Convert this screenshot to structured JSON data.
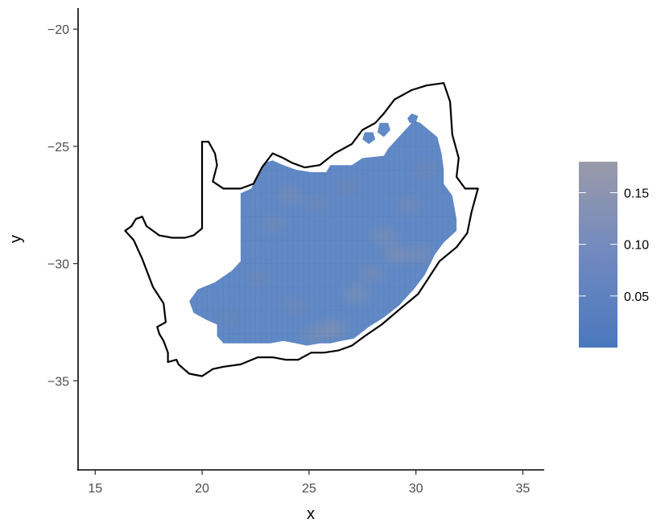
{
  "chart_data": {
    "type": "heatmap",
    "title": "",
    "xlabel": "x",
    "ylabel": "y",
    "xlim": [
      14.2,
      36.0
    ],
    "ylim": [
      -38.8,
      -19.1
    ],
    "x_ticks": [
      15,
      20,
      25,
      30,
      35
    ],
    "x_tick_labels": [
      "15",
      "20",
      "25",
      "30",
      "35"
    ],
    "y_ticks": [
      -20,
      -25,
      -30,
      -35
    ],
    "y_tick_labels": [
      "−20",
      "−25",
      "−30",
      "−35"
    ],
    "grid": false,
    "legend": {
      "placement": "right",
      "min": 0.0,
      "max": 0.18,
      "breaks": [
        0.05,
        0.1,
        0.15
      ],
      "labels": [
        "0.05",
        "0.10",
        "0.15"
      ],
      "color_low": "#4a78bd",
      "color_high": "#9a9aa8"
    },
    "fill_color": "#6089c6",
    "outline_color": "#000000",
    "outline": [
      [
        16.4,
        -28.6
      ],
      [
        16.7,
        -28.4
      ],
      [
        16.9,
        -28.1
      ],
      [
        17.2,
        -28.0
      ],
      [
        17.4,
        -28.4
      ],
      [
        18.0,
        -28.8
      ],
      [
        18.6,
        -28.9
      ],
      [
        19.2,
        -28.9
      ],
      [
        19.6,
        -28.8
      ],
      [
        20.0,
        -28.5
      ],
      [
        20.0,
        -24.8
      ],
      [
        20.3,
        -24.8
      ],
      [
        20.6,
        -25.3
      ],
      [
        20.7,
        -25.8
      ],
      [
        20.5,
        -26.5
      ],
      [
        21.0,
        -26.8
      ],
      [
        21.8,
        -26.8
      ],
      [
        22.4,
        -26.6
      ],
      [
        22.8,
        -25.9
      ],
      [
        23.3,
        -25.3
      ],
      [
        23.8,
        -25.5
      ],
      [
        24.2,
        -25.7
      ],
      [
        24.8,
        -25.9
      ],
      [
        25.5,
        -25.8
      ],
      [
        26.2,
        -25.3
      ],
      [
        27.0,
        -24.9
      ],
      [
        27.5,
        -24.3
      ],
      [
        28.1,
        -24.0
      ],
      [
        28.5,
        -23.6
      ],
      [
        29.0,
        -23.0
      ],
      [
        29.8,
        -22.6
      ],
      [
        30.5,
        -22.4
      ],
      [
        31.3,
        -22.3
      ],
      [
        31.6,
        -23.1
      ],
      [
        31.7,
        -24.5
      ],
      [
        32.0,
        -25.5
      ],
      [
        31.9,
        -26.3
      ],
      [
        32.3,
        -26.8
      ],
      [
        32.9,
        -26.8
      ],
      [
        32.6,
        -27.8
      ],
      [
        32.4,
        -28.7
      ],
      [
        31.9,
        -29.3
      ],
      [
        31.1,
        -29.9
      ],
      [
        30.6,
        -30.6
      ],
      [
        30.1,
        -31.3
      ],
      [
        29.3,
        -31.9
      ],
      [
        28.4,
        -32.6
      ],
      [
        27.6,
        -33.1
      ],
      [
        27.0,
        -33.5
      ],
      [
        26.4,
        -33.7
      ],
      [
        25.7,
        -33.8
      ],
      [
        25.1,
        -33.8
      ],
      [
        24.5,
        -34.1
      ],
      [
        23.9,
        -34.1
      ],
      [
        23.3,
        -34.0
      ],
      [
        22.6,
        -34.0
      ],
      [
        21.8,
        -34.3
      ],
      [
        21.0,
        -34.4
      ],
      [
        20.5,
        -34.5
      ],
      [
        20.0,
        -34.8
      ],
      [
        19.4,
        -34.7
      ],
      [
        18.9,
        -34.3
      ],
      [
        18.8,
        -34.1
      ],
      [
        18.4,
        -34.2
      ],
      [
        18.4,
        -33.8
      ],
      [
        18.2,
        -33.3
      ],
      [
        18.0,
        -33.0
      ],
      [
        17.9,
        -32.7
      ],
      [
        18.3,
        -32.5
      ],
      [
        18.2,
        -31.7
      ],
      [
        17.7,
        -31.0
      ],
      [
        17.2,
        -29.8
      ],
      [
        16.8,
        -29.0
      ],
      [
        16.4,
        -28.6
      ]
    ],
    "data_region": [
      [
        21.8,
        -27.0
      ],
      [
        22.3,
        -26.8
      ],
      [
        22.6,
        -26.2
      ],
      [
        22.9,
        -25.7
      ],
      [
        23.3,
        -25.6
      ],
      [
        23.8,
        -25.8
      ],
      [
        24.4,
        -26.0
      ],
      [
        25.1,
        -26.1
      ],
      [
        25.8,
        -26.1
      ],
      [
        26.0,
        -25.8
      ],
      [
        27.0,
        -25.8
      ],
      [
        27.5,
        -25.5
      ],
      [
        28.5,
        -25.4
      ],
      [
        28.7,
        -25.1
      ],
      [
        29.3,
        -24.5
      ],
      [
        29.6,
        -24.2
      ],
      [
        29.9,
        -23.9
      ],
      [
        30.2,
        -24.0
      ],
      [
        30.6,
        -24.3
      ],
      [
        31.0,
        -24.6
      ],
      [
        31.2,
        -25.3
      ],
      [
        31.3,
        -26.0
      ],
      [
        31.3,
        -26.6
      ],
      [
        31.7,
        -27.1
      ],
      [
        31.9,
        -28.1
      ],
      [
        31.9,
        -28.6
      ],
      [
        31.3,
        -29.1
      ],
      [
        30.9,
        -29.6
      ],
      [
        30.4,
        -30.5
      ],
      [
        29.9,
        -31.1
      ],
      [
        29.2,
        -31.8
      ],
      [
        28.5,
        -32.3
      ],
      [
        27.8,
        -32.7
      ],
      [
        27.1,
        -33.2
      ],
      [
        26.5,
        -33.3
      ],
      [
        26.0,
        -33.4
      ],
      [
        25.5,
        -33.4
      ],
      [
        24.9,
        -33.5
      ],
      [
        24.4,
        -33.4
      ],
      [
        23.8,
        -33.3
      ],
      [
        23.2,
        -33.4
      ],
      [
        22.3,
        -33.4
      ],
      [
        21.6,
        -33.4
      ],
      [
        21.0,
        -33.4
      ],
      [
        20.7,
        -33.1
      ],
      [
        20.7,
        -32.6
      ],
      [
        20.2,
        -32.4
      ],
      [
        19.6,
        -32.1
      ],
      [
        19.4,
        -31.6
      ],
      [
        19.8,
        -31.1
      ],
      [
        20.6,
        -30.8
      ],
      [
        21.4,
        -30.3
      ],
      [
        21.8,
        -29.9
      ],
      [
        21.8,
        -27.0
      ]
    ],
    "islands": [
      [
        [
          27.6,
          -24.4
        ],
        [
          28.0,
          -24.4
        ],
        [
          28.1,
          -24.7
        ],
        [
          27.8,
          -24.9
        ],
        [
          27.5,
          -24.7
        ],
        [
          27.6,
          -24.4
        ]
      ],
      [
        [
          28.3,
          -24.0
        ],
        [
          28.7,
          -24.0
        ],
        [
          28.8,
          -24.3
        ],
        [
          28.5,
          -24.6
        ],
        [
          28.2,
          -24.4
        ],
        [
          28.3,
          -24.0
        ]
      ],
      [
        [
          29.8,
          -23.6
        ],
        [
          30.1,
          -23.7
        ],
        [
          30.0,
          -24.0
        ],
        [
          29.7,
          -24.0
        ],
        [
          29.6,
          -23.8
        ],
        [
          29.8,
          -23.6
        ]
      ]
    ],
    "light_patches": [
      [
        23.3,
        -28.3,
        0.1
      ],
      [
        24.1,
        -27.1,
        0.11
      ],
      [
        25.4,
        -27.4,
        0.09
      ],
      [
        26.8,
        -26.7,
        0.08
      ],
      [
        28.5,
        -28.8,
        0.12
      ],
      [
        29.1,
        -29.6,
        0.14
      ],
      [
        27.2,
        -31.3,
        0.13
      ],
      [
        26.1,
        -32.8,
        0.15
      ],
      [
        25.3,
        -33.0,
        0.12
      ],
      [
        24.3,
        -31.8,
        0.09
      ],
      [
        22.6,
        -30.6,
        0.08
      ],
      [
        21.2,
        -32.3,
        0.07
      ],
      [
        29.7,
        -27.5,
        0.1
      ],
      [
        30.5,
        -26.0,
        0.09
      ],
      [
        27.9,
        -30.4,
        0.11
      ],
      [
        30.2,
        -29.6,
        0.12
      ]
    ]
  }
}
